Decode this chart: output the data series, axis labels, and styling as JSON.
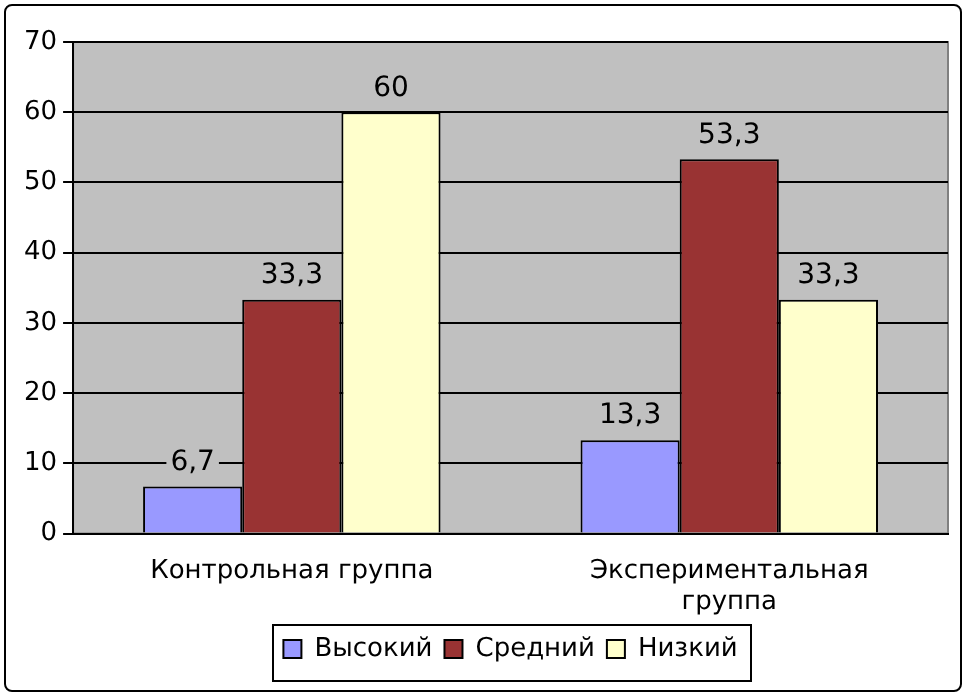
{
  "chart_data": {
    "type": "bar",
    "categories": [
      "Контрольная группа",
      "Экспериментальная группа"
    ],
    "series": [
      {
        "name": "Высокий",
        "color": "#9999ff",
        "values": [
          6.7,
          13.3
        ],
        "value_labels": [
          "6,7",
          "13,3"
        ]
      },
      {
        "name": "Средний",
        "color": "#993333",
        "values": [
          33.3,
          53.3
        ],
        "value_labels": [
          "33,3",
          "53,3"
        ]
      },
      {
        "name": "Низкий",
        "color": "#ffffcc",
        "values": [
          60,
          33.3
        ],
        "value_labels": [
          "60",
          "33,3"
        ]
      }
    ],
    "ylim": [
      0,
      70
    ],
    "yticks": [
      0,
      10,
      20,
      30,
      40,
      50,
      60,
      70
    ],
    "grid": "y",
    "legend": "bottom"
  }
}
